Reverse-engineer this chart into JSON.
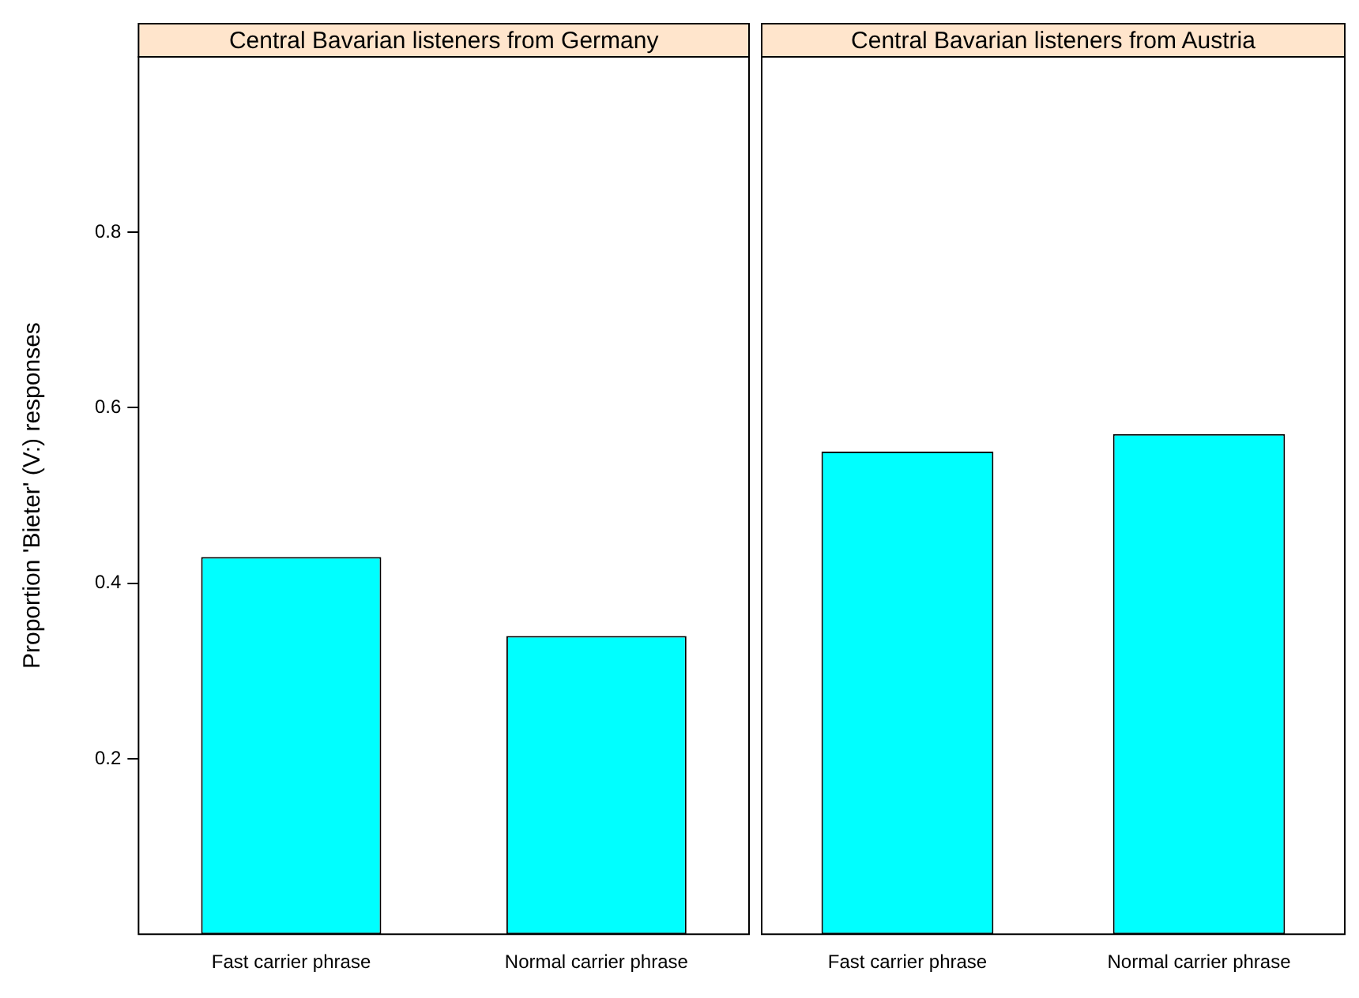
{
  "chart_data": [
    {
      "type": "bar",
      "title": "Central Bavarian listeners from Germany",
      "ylabel": "Proportion 'Bieter' (V:) responses",
      "categories": [
        "Fast carrier phrase",
        "Normal carrier phrase"
      ],
      "values": [
        0.43,
        0.34
      ],
      "color": "#00ffff",
      "ylim": [
        0,
        1
      ],
      "yticks": [
        0.2,
        0.4,
        0.6,
        0.8
      ]
    },
    {
      "type": "bar",
      "title": "Central Bavarian listeners from Austria",
      "categories": [
        "Fast carrier phrase",
        "Normal carrier phrase"
      ],
      "values": [
        0.55,
        0.57
      ],
      "color": "#00ffff",
      "ylim": [
        0,
        1
      ],
      "yticks": [
        0.2,
        0.4,
        0.6,
        0.8
      ],
      "tick_labels": "x"
    }
  ]
}
